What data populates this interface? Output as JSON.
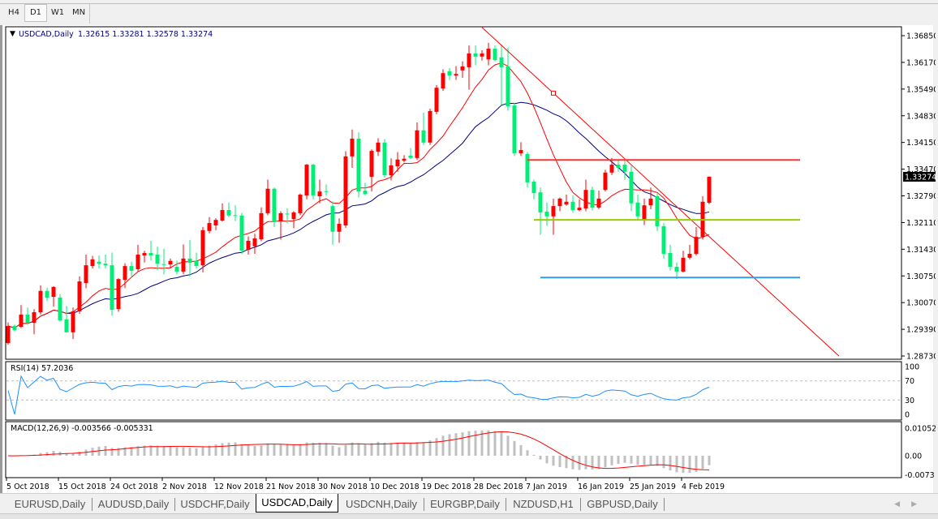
{
  "timeframes": [
    {
      "label": "H4",
      "active": false
    },
    {
      "label": "D1",
      "active": true
    },
    {
      "label": "W1",
      "active": false
    },
    {
      "label": "MN",
      "active": false
    }
  ],
  "chart": {
    "symbol_label": "USDCAD,Daily",
    "ohlc_label": "1.32615 1.33281 1.32578 1.33274",
    "current_price": "1.33274",
    "colors": {
      "bull": "#ff0000",
      "bear": "#00ee76",
      "ma_fast": "#ff0000",
      "ma_slow": "#000080",
      "trendline": "#ff0000"
    }
  },
  "chart_data": [
    {
      "type": "candlestick",
      "title": "USDCAD,Daily",
      "ylim": [
        1.2873,
        1.3685
      ],
      "y_ticks": [
        "1.36850",
        "1.36170",
        "1.35490",
        "1.34830",
        "1.34150",
        "1.33470",
        "1.32790",
        "1.32110",
        "1.31430",
        "1.30750",
        "1.30070",
        "1.29390",
        "1.28730"
      ],
      "x_ticks": [
        "5 Oct 2018",
        "15 Oct 2018",
        "24 Oct 2018",
        "2 Nov 2018",
        "12 Nov 2018",
        "21 Nov 2018",
        "30 Nov 2018",
        "10 Dec 2018",
        "19 Dec 2018",
        "28 Dec 2018",
        "7 Jan 2019",
        "16 Jan 2019",
        "25 Jan 2019",
        "4 Feb 2019"
      ],
      "ohlc": [
        [
          1.2906,
          1.2958,
          1.2902,
          1.2949
        ],
        [
          1.2949,
          1.2953,
          1.2935,
          1.2939
        ],
        [
          1.2947,
          1.3002,
          1.2944,
          1.2978
        ],
        [
          1.2978,
          1.2996,
          1.2952,
          1.2957
        ],
        [
          1.2957,
          1.2992,
          1.2928,
          1.2984
        ],
        [
          1.2984,
          1.3052,
          1.2978,
          1.3038
        ],
        [
          1.3038,
          1.3046,
          1.3012,
          1.3021
        ],
        [
          1.3023,
          1.305,
          1.2998,
          1.3048
        ],
        [
          1.3021,
          1.303,
          1.296,
          1.2963
        ],
        [
          1.2966,
          1.3,
          1.2936,
          1.2933
        ],
        [
          1.2933,
          1.2996,
          1.2916,
          1.2986
        ],
        [
          1.2986,
          1.3075,
          1.298,
          1.3062
        ],
        [
          1.3058,
          1.313,
          1.3045,
          1.3103
        ],
        [
          1.3101,
          1.3127,
          1.3095,
          1.3118
        ],
        [
          1.3112,
          1.3128,
          1.3095,
          1.3107
        ],
        [
          1.3107,
          1.313,
          1.3095,
          1.3103
        ],
        [
          1.3103,
          1.3135,
          1.2975,
          1.299
        ],
        [
          1.2992,
          1.307,
          1.2985,
          1.3068
        ],
        [
          1.3066,
          1.3108,
          1.3045,
          1.3101
        ],
        [
          1.3101,
          1.3112,
          1.3075,
          1.3089
        ],
        [
          1.3093,
          1.3155,
          1.3088,
          1.313
        ],
        [
          1.3128,
          1.314,
          1.311,
          1.3134
        ],
        [
          1.3134,
          1.3165,
          1.3115,
          1.3128
        ],
        [
          1.313,
          1.315,
          1.309,
          1.3107
        ],
        [
          1.3106,
          1.3145,
          1.308,
          1.3105
        ],
        [
          1.3105,
          1.312,
          1.3095,
          1.3114
        ],
        [
          1.3099,
          1.3115,
          1.308,
          1.3087
        ],
        [
          1.3087,
          1.3156,
          1.308,
          1.312
        ],
        [
          1.312,
          1.3167,
          1.3075,
          1.3109
        ],
        [
          1.3114,
          1.3135,
          1.3095,
          1.3101
        ],
        [
          1.3103,
          1.32,
          1.3085,
          1.3192
        ],
        [
          1.319,
          1.3225,
          1.3184,
          1.321
        ],
        [
          1.3204,
          1.3222,
          1.3192,
          1.3218
        ],
        [
          1.3216,
          1.326,
          1.3214,
          1.3243
        ],
        [
          1.3243,
          1.3262,
          1.3225,
          1.3229
        ],
        [
          1.323,
          1.3255,
          1.3215,
          1.3229
        ],
        [
          1.3229,
          1.3236,
          1.3132,
          1.314
        ],
        [
          1.3142,
          1.3176,
          1.313,
          1.3165
        ],
        [
          1.3151,
          1.3183,
          1.3132,
          1.3171
        ],
        [
          1.3169,
          1.325,
          1.3164,
          1.3235
        ],
        [
          1.3235,
          1.332,
          1.323,
          1.3297
        ],
        [
          1.3297,
          1.33,
          1.32,
          1.3214
        ],
        [
          1.3214,
          1.324,
          1.3168,
          1.3235
        ],
        [
          1.3234,
          1.3248,
          1.3209,
          1.3233
        ],
        [
          1.322,
          1.324,
          1.3197,
          1.3237
        ],
        [
          1.3235,
          1.3285,
          1.323,
          1.3282
        ],
        [
          1.328,
          1.336,
          1.327,
          1.3358
        ],
        [
          1.3358,
          1.336,
          1.327,
          1.328
        ],
        [
          1.3278,
          1.332,
          1.326,
          1.329
        ],
        [
          1.3291,
          1.3308,
          1.328,
          1.329
        ],
        [
          1.3253,
          1.3265,
          1.3155,
          1.3188
        ],
        [
          1.3188,
          1.3222,
          1.316,
          1.3208
        ],
        [
          1.3204,
          1.3392,
          1.3198,
          1.3379
        ],
        [
          1.3379,
          1.3447,
          1.335,
          1.3424
        ],
        [
          1.3424,
          1.344,
          1.3275,
          1.329
        ],
        [
          1.3292,
          1.3312,
          1.328,
          1.3284
        ],
        [
          1.3327,
          1.3397,
          1.329,
          1.3393
        ],
        [
          1.3391,
          1.3425,
          1.338,
          1.3414
        ],
        [
          1.3414,
          1.3423,
          1.3325,
          1.3331
        ],
        [
          1.3331,
          1.3374,
          1.3318,
          1.3356
        ],
        [
          1.3354,
          1.339,
          1.334,
          1.3371
        ],
        [
          1.3368,
          1.3382,
          1.3364,
          1.3373
        ],
        [
          1.3381,
          1.34,
          1.3372,
          1.3375
        ],
        [
          1.3375,
          1.3465,
          1.337,
          1.3445
        ],
        [
          1.3445,
          1.349,
          1.3408,
          1.3414
        ],
        [
          1.3414,
          1.35,
          1.3408,
          1.3494
        ],
        [
          1.3492,
          1.356,
          1.3486,
          1.3553
        ],
        [
          1.3551,
          1.36,
          1.3545,
          1.359
        ],
        [
          1.3595,
          1.3603,
          1.3573,
          1.3584
        ],
        [
          1.3584,
          1.3608,
          1.3573,
          1.3588
        ],
        [
          1.3597,
          1.362,
          1.3578,
          1.3607
        ],
        [
          1.3605,
          1.366,
          1.3548,
          1.364
        ],
        [
          1.364,
          1.366,
          1.361,
          1.3632
        ],
        [
          1.3632,
          1.3648,
          1.3622,
          1.364
        ],
        [
          1.3625,
          1.3667,
          1.361,
          1.3652
        ],
        [
          1.3652,
          1.366,
          1.362,
          1.3623
        ],
        [
          1.363,
          1.3663,
          1.351,
          1.3605
        ],
        [
          1.3607,
          1.3655,
          1.3495,
          1.3506
        ],
        [
          1.3508,
          1.3515,
          1.338,
          1.3387
        ],
        [
          1.3387,
          1.3415,
          1.338,
          1.3395
        ],
        [
          1.3385,
          1.339,
          1.33,
          1.3313
        ],
        [
          1.3315,
          1.332,
          1.327,
          1.3286
        ],
        [
          1.3288,
          1.33,
          1.318,
          1.3237
        ],
        [
          1.3239,
          1.3262,
          1.3203,
          1.3227
        ],
        [
          1.3227,
          1.3272,
          1.318,
          1.3253
        ],
        [
          1.3253,
          1.3275,
          1.324,
          1.3272
        ],
        [
          1.3257,
          1.3282,
          1.3254,
          1.3264
        ],
        [
          1.3264,
          1.328,
          1.3236,
          1.3243
        ],
        [
          1.3243,
          1.327,
          1.324,
          1.3249
        ],
        [
          1.3247,
          1.332,
          1.324,
          1.3294
        ],
        [
          1.3294,
          1.3302,
          1.3242,
          1.3249
        ],
        [
          1.3249,
          1.3292,
          1.3245,
          1.3272
        ],
        [
          1.3294,
          1.3345,
          1.329,
          1.3338
        ],
        [
          1.3338,
          1.3375,
          1.3332,
          1.3358
        ],
        [
          1.3358,
          1.337,
          1.334,
          1.335
        ],
        [
          1.3358,
          1.3372,
          1.332,
          1.334
        ],
        [
          1.334,
          1.3355,
          1.324,
          1.326
        ],
        [
          1.3262,
          1.3282,
          1.322,
          1.3227
        ],
        [
          1.3218,
          1.3272,
          1.3205,
          1.3255
        ],
        [
          1.3255,
          1.33,
          1.3245,
          1.3272
        ],
        [
          1.3278,
          1.3285,
          1.319,
          1.3202
        ],
        [
          1.3202,
          1.321,
          1.312,
          1.3132
        ],
        [
          1.3134,
          1.3155,
          1.309,
          1.3099
        ],
        [
          1.3099,
          1.311,
          1.3068,
          1.3087
        ],
        [
          1.3087,
          1.314,
          1.3085,
          1.3122
        ],
        [
          1.3122,
          1.3155,
          1.3118,
          1.3132
        ],
        [
          1.3132,
          1.32,
          1.3128,
          1.3175
        ],
        [
          1.3175,
          1.3278,
          1.3168,
          1.3264
        ],
        [
          1.32615,
          1.33281,
          1.32578,
          1.33274
        ]
      ],
      "trendline": {
        "from_bar": 73,
        "from_price": 1.3706,
        "to_bar": 128,
        "to_price": 1.2873,
        "color": "#ff0000"
      },
      "horizontal_lines": [
        {
          "price": 1.337,
          "from_bar": 80,
          "to_bar": 122,
          "color": "#ff3333"
        },
        {
          "price": 1.3218,
          "from_bar": 81,
          "to_bar": 122,
          "color": "#99cc00"
        },
        {
          "price": 1.3072,
          "from_bar": 82,
          "to_bar": 122,
          "color": "#3399ee"
        }
      ]
    },
    {
      "type": "line",
      "title": "RSI(14) 57.2036",
      "ylim": [
        0,
        100
      ],
      "levels": [
        70,
        30
      ],
      "y_ticks": [
        "100",
        "70",
        "30",
        "0"
      ],
      "color": "#1e90ff"
    },
    {
      "type": "bar",
      "title": "MACD(12,26,9) -0.003566 -0.005331",
      "ylim": [
        -0.0073,
        0.010525
      ],
      "y_ticks": [
        "0.010525",
        "0.00",
        "-0.0073"
      ],
      "histogram_color": "#c0c0c0",
      "signal_color": "#ff0000"
    }
  ],
  "tabs": [
    {
      "label": "EURUSD,Daily",
      "active": false
    },
    {
      "label": "AUDUSD,Daily",
      "active": false
    },
    {
      "label": "USDCHF,Daily",
      "active": false
    },
    {
      "label": "USDCAD,Daily",
      "active": true
    },
    {
      "label": "USDCNH,Daily",
      "active": false
    },
    {
      "label": "EURGBP,Daily",
      "active": false
    },
    {
      "label": "NZDUSD,H1",
      "active": false
    },
    {
      "label": "GBPUSD,Daily",
      "active": false
    }
  ]
}
